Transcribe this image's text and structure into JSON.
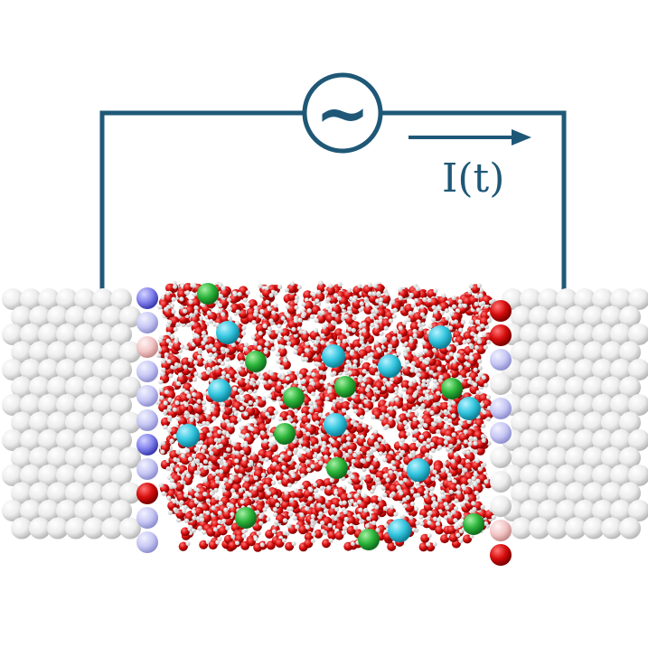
{
  "circuit": {
    "source_symbol": "~",
    "current_label": "I(t)"
  },
  "colors": {
    "circuit": "#1f5877",
    "electrode_atom": "#e4e4e4",
    "oxygen": "#d80d0d",
    "hydrogen": "#f4f4f4",
    "cation": "#35c7e0",
    "anion": "#2bb53a",
    "positive_surface_charge": "#e03a3a",
    "negative_surface_charge": "#5c5ce6"
  },
  "icons": {
    "ac_source": "ac-source-icon",
    "current_arrow": "arrow-right-icon"
  }
}
